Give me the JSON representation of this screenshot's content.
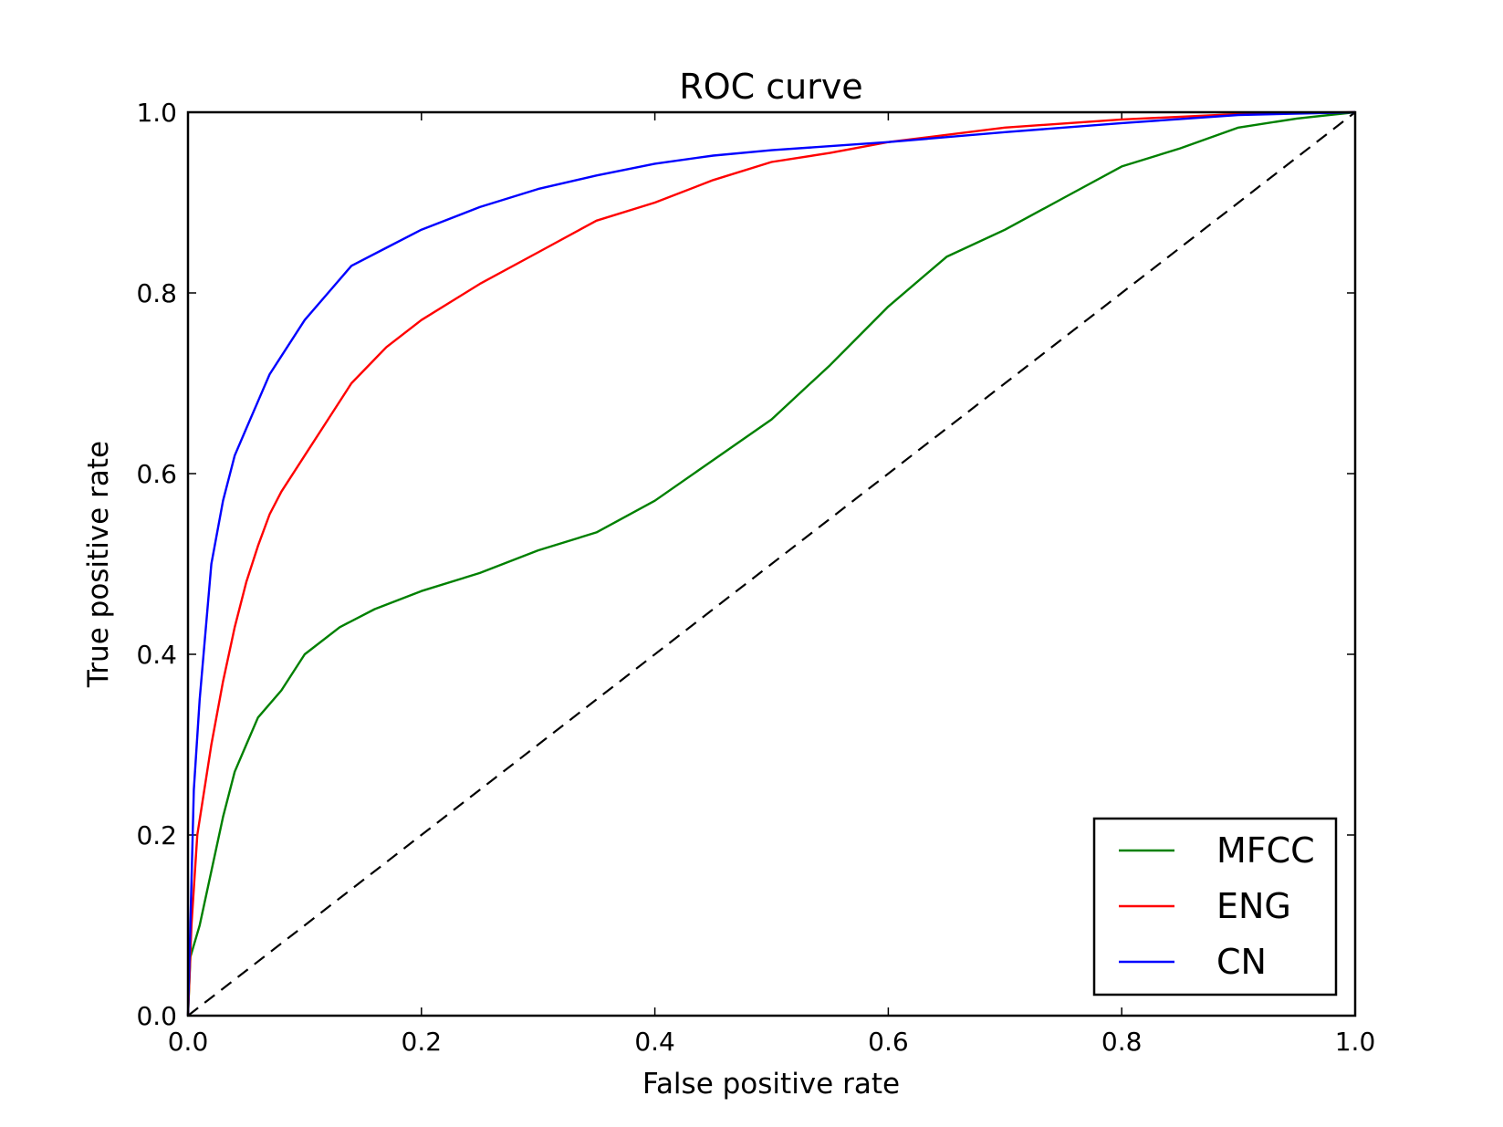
{
  "chart_data": {
    "type": "line",
    "title": "ROC curve",
    "xlabel": "False positive rate",
    "ylabel": "True positive rate",
    "xlim": [
      0,
      1
    ],
    "ylim": [
      0,
      1
    ],
    "xticks": [
      "0.0",
      "0.2",
      "0.4",
      "0.6",
      "0.8",
      "1.0"
    ],
    "yticks": [
      "0.0",
      "0.2",
      "0.4",
      "0.6",
      "0.8",
      "1.0"
    ],
    "grid": false,
    "legend_position": "bottom-right",
    "series": [
      {
        "name": "MFCC",
        "color": "#008000",
        "points": [
          [
            0,
            0
          ],
          [
            0.002,
            0.065
          ],
          [
            0.01,
            0.1
          ],
          [
            0.02,
            0.16
          ],
          [
            0.03,
            0.22
          ],
          [
            0.04,
            0.27
          ],
          [
            0.05,
            0.3
          ],
          [
            0.06,
            0.33
          ],
          [
            0.08,
            0.36
          ],
          [
            0.1,
            0.4
          ],
          [
            0.13,
            0.43
          ],
          [
            0.16,
            0.45
          ],
          [
            0.2,
            0.47
          ],
          [
            0.25,
            0.49
          ],
          [
            0.3,
            0.515
          ],
          [
            0.35,
            0.535
          ],
          [
            0.4,
            0.57
          ],
          [
            0.45,
            0.615
          ],
          [
            0.5,
            0.66
          ],
          [
            0.55,
            0.72
          ],
          [
            0.6,
            0.785
          ],
          [
            0.65,
            0.84
          ],
          [
            0.7,
            0.87
          ],
          [
            0.75,
            0.905
          ],
          [
            0.8,
            0.94
          ],
          [
            0.85,
            0.96
          ],
          [
            0.9,
            0.983
          ],
          [
            0.95,
            0.993
          ],
          [
            1,
            1
          ]
        ]
      },
      {
        "name": "ENG",
        "color": "#ff0000",
        "points": [
          [
            0,
            0
          ],
          [
            0.003,
            0.1
          ],
          [
            0.008,
            0.2
          ],
          [
            0.02,
            0.3
          ],
          [
            0.03,
            0.37
          ],
          [
            0.04,
            0.43
          ],
          [
            0.05,
            0.48
          ],
          [
            0.06,
            0.52
          ],
          [
            0.07,
            0.555
          ],
          [
            0.08,
            0.58
          ],
          [
            0.1,
            0.62
          ],
          [
            0.12,
            0.66
          ],
          [
            0.14,
            0.7
          ],
          [
            0.17,
            0.74
          ],
          [
            0.2,
            0.77
          ],
          [
            0.25,
            0.81
          ],
          [
            0.3,
            0.845
          ],
          [
            0.35,
            0.88
          ],
          [
            0.4,
            0.9
          ],
          [
            0.45,
            0.925
          ],
          [
            0.5,
            0.945
          ],
          [
            0.55,
            0.955
          ],
          [
            0.6,
            0.967
          ],
          [
            0.7,
            0.983
          ],
          [
            0.8,
            0.992
          ],
          [
            0.9,
            0.998
          ],
          [
            1,
            1
          ]
        ]
      },
      {
        "name": "CN",
        "color": "#0000ff",
        "points": [
          [
            0,
            0
          ],
          [
            0.002,
            0.1
          ],
          [
            0.005,
            0.25
          ],
          [
            0.01,
            0.35
          ],
          [
            0.02,
            0.5
          ],
          [
            0.03,
            0.57
          ],
          [
            0.04,
            0.62
          ],
          [
            0.05,
            0.65
          ],
          [
            0.06,
            0.68
          ],
          [
            0.07,
            0.71
          ],
          [
            0.08,
            0.73
          ],
          [
            0.1,
            0.77
          ],
          [
            0.12,
            0.8
          ],
          [
            0.14,
            0.83
          ],
          [
            0.17,
            0.85
          ],
          [
            0.2,
            0.87
          ],
          [
            0.25,
            0.895
          ],
          [
            0.3,
            0.915
          ],
          [
            0.35,
            0.93
          ],
          [
            0.4,
            0.943
          ],
          [
            0.45,
            0.952
          ],
          [
            0.5,
            0.958
          ],
          [
            0.6,
            0.967
          ],
          [
            0.7,
            0.978
          ],
          [
            0.8,
            0.988
          ],
          [
            0.9,
            0.997
          ],
          [
            1,
            1
          ]
        ]
      }
    ],
    "reference_line": {
      "points": [
        [
          0,
          0
        ],
        [
          1,
          1
        ]
      ],
      "style": "dashed",
      "color": "#000000"
    }
  }
}
